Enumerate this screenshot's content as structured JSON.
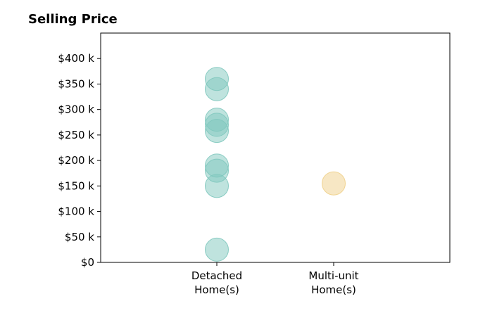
{
  "chart_data": {
    "type": "scatter",
    "title": "Selling Price",
    "xlabel": "",
    "ylabel": "",
    "categories": [
      "Detached\nHome(s)",
      "Multi-unit\nHome(s)"
    ],
    "y_ticks": [
      "$0",
      "$50 k",
      "$100 k",
      "$150 k",
      "$200 k",
      "$250 k",
      "$300 k",
      "$350 k",
      "$400 k"
    ],
    "y_tick_values": [
      0,
      50000,
      100000,
      150000,
      200000,
      250000,
      300000,
      350000,
      400000
    ],
    "ylim": [
      0,
      450000
    ],
    "grid": false,
    "series": [
      {
        "category": "Detached\nHome(s)",
        "color": "#7fc8be",
        "values": [
          25000,
          150000,
          180000,
          190000,
          258000,
          270000,
          280000,
          340000,
          360000
        ]
      },
      {
        "category": "Multi-unit\nHome(s)",
        "color": "#f0d08a",
        "values": [
          155000
        ]
      }
    ]
  }
}
